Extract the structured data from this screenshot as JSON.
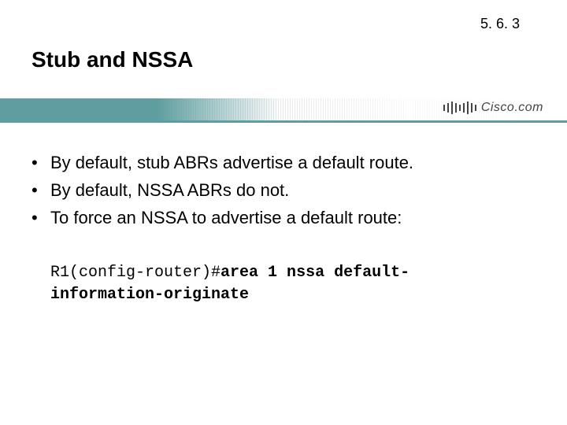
{
  "slide_number": "5. 6. 3",
  "title": "Stub and NSSA",
  "logo_text": "Cisco.com",
  "bullets": {
    "b0": "By default, stub ABRs advertise a default route.",
    "b1": "By default, NSSA ABRs do not.",
    "b2": "To force an NSSA to advertise a default route:"
  },
  "code": {
    "prompt": "R1(config-router)#",
    "cmd_line1": "area 1 nssa default-",
    "cmd_line2": "information-originate"
  },
  "colors": {
    "teal": "#5f9ea0",
    "text": "#000000",
    "background": "#ffffff"
  }
}
